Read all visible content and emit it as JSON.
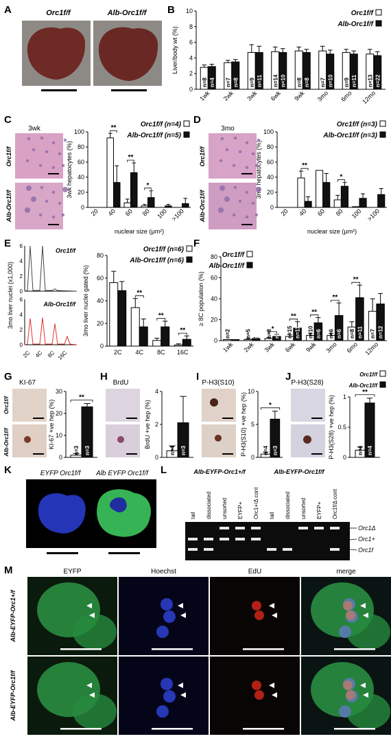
{
  "panel_letters": [
    "A",
    "B",
    "C",
    "D",
    "E",
    "F",
    "G",
    "H",
    "I",
    "J",
    "K",
    "L",
    "M"
  ],
  "colors": {
    "black": "#111111",
    "white": "#ffffff",
    "liver": "#6e2a25",
    "he_pink": "#d9a1c4",
    "flow_red": "#e0322c",
    "eyfp": "#2fae4a",
    "hoechst": "#2a3ec8",
    "edu": "#c42318",
    "gel_bg": "#0c0c0c",
    "gel_band": "#e8e8e8"
  },
  "panelA": {
    "labels": [
      "Orc1f/f",
      "Alb-Orc1f/f"
    ]
  },
  "panelK": {
    "labels": [
      "EYFP Orc1f/f",
      "Alb EYFP Orc1f/f"
    ]
  },
  "panelM": {
    "columns": [
      "EYFP",
      "Hoechst",
      "EdU",
      "merge"
    ],
    "rows": [
      "Alb-EYFP-Orc1+/f",
      "Alb-EYFP-Orc1f/f"
    ]
  },
  "panelL": {
    "group_labels": [
      "Alb-EYFP-Orc1+/f",
      "Alb-EYFP-Orc1f/f"
    ],
    "lanes": [
      "tail",
      "dissociated",
      "unsorted",
      "EYFP+",
      "Orc1+/Δ cont",
      "tail",
      "dissociated",
      "unsorted",
      "EYFP+",
      "Orc1f/Δ cont"
    ],
    "band_labels": [
      "Orc1Δ",
      "Orc1+",
      "Orc1f"
    ]
  },
  "stain_titles": {
    "C": "3wk",
    "D": "3mo",
    "G": "KI-67",
    "H": "BrdU",
    "I": "P-H3(S10)",
    "J": "P-H3(S28)"
  },
  "chart_data": [
    {
      "panel": "B",
      "type": "bar",
      "ylabel": "Liver/body wt (%)",
      "ylim": [
        0,
        10
      ],
      "yticks": [
        0,
        2,
        4,
        6,
        8,
        10
      ],
      "categories": [
        "1wk",
        "2wk",
        "3wk",
        "6wk",
        "9wk",
        "3mo",
        "6mo",
        "12mo"
      ],
      "series": [
        {
          "name": "Orc1f/f",
          "values": [
            2.8,
            3.4,
            4.7,
            4.8,
            4.9,
            4.9,
            4.7,
            4.5
          ],
          "errors": [
            0.3,
            0.3,
            1.0,
            0.6,
            0.5,
            0.6,
            0.4,
            0.6
          ],
          "n": [
            "n=8",
            "n=7",
            "n=9",
            "n=14",
            "n=8",
            "n=7",
            "n=9",
            "n=13"
          ]
        },
        {
          "name": "Alb-Orc1f/f",
          "values": [
            2.9,
            3.5,
            4.7,
            4.7,
            4.7,
            4.5,
            4.5,
            4.3
          ],
          "errors": [
            0.3,
            0.3,
            0.8,
            0.5,
            0.4,
            0.5,
            0.4,
            0.5
          ],
          "n": [
            "n=4",
            "n=8",
            "n=11",
            "n=10",
            "n=8",
            "n=10",
            "n=11",
            "n=22"
          ]
        }
      ]
    },
    {
      "panel": "C",
      "type": "bar",
      "ylabel": "3wk hepatocytes (%)",
      "xlabel": "nuclear size (μm²)",
      "ylim": [
        0,
        100
      ],
      "yticks": [
        0,
        20,
        40,
        60,
        80,
        100
      ],
      "categories": [
        "20",
        "40",
        "60",
        "80",
        "100",
        ">100"
      ],
      "series": [
        {
          "name": "Orc1f/f (n=4)",
          "values": [
            0,
            92,
            6,
            2,
            0,
            0
          ],
          "errors": [
            0,
            6,
            5,
            2,
            0,
            0
          ]
        },
        {
          "name": "Alb-Orc1f/f (n=5)",
          "values": [
            0,
            33,
            46,
            13,
            2,
            5
          ],
          "errors": [
            0,
            22,
            13,
            9,
            2,
            7
          ]
        }
      ],
      "sig": [
        {
          "cat": 1,
          "text": "**"
        },
        {
          "cat": 2,
          "text": "**"
        },
        {
          "cat": 3,
          "text": "*"
        }
      ]
    },
    {
      "panel": "D",
      "type": "bar",
      "ylabel": "3mo hepatocytes (%)",
      "xlabel": "nuclear size (μm²)",
      "ylim": [
        0,
        100
      ],
      "yticks": [
        0,
        20,
        40,
        60,
        80,
        100
      ],
      "categories": [
        "20",
        "40",
        "60",
        "80",
        "100",
        ">100"
      ],
      "series": [
        {
          "name": "Orc1f/f (n=3)",
          "values": [
            0,
            39,
            49,
            10,
            1,
            0
          ],
          "errors": [
            0,
            9,
            0,
            6,
            0,
            0
          ]
        },
        {
          "name": "Alb-Orc1f/f (n=3)",
          "values": [
            0,
            8,
            33,
            28,
            12,
            17
          ],
          "errors": [
            0,
            6,
            12,
            5,
            6,
            8
          ]
        }
      ],
      "sig": [
        {
          "cat": 1,
          "text": "**"
        },
        {
          "cat": 3,
          "text": "*"
        }
      ]
    },
    {
      "panel": "E-flow",
      "type": "line",
      "ylabel": "3mo liver nuclei (x1,000)",
      "ylim": [
        0,
        6
      ],
      "yticks": [
        0,
        2,
        4,
        6
      ],
      "xticks": [
        "2C",
        "4C",
        "8C",
        "16C"
      ],
      "traces": [
        {
          "label": "Orc1f/f",
          "peaks": [
            [
              1,
              6.0
            ],
            [
              2,
              6.0
            ],
            [
              3,
              0.3
            ]
          ]
        },
        {
          "label": "Alb-Orc1f/f",
          "peaks": [
            [
              1,
              3.5
            ],
            [
              2,
              3.6
            ],
            [
              3,
              2.8
            ],
            [
              4,
              1.1
            ]
          ]
        }
      ]
    },
    {
      "panel": "E",
      "type": "bar",
      "ylabel": "3mo liver nuclei gated (%)",
      "ylim": [
        0,
        80
      ],
      "yticks": [
        0,
        20,
        40,
        60,
        80
      ],
      "categories": [
        "2C",
        "4C",
        "8C",
        "16C"
      ],
      "series": [
        {
          "name": "Orc1f/f (n=6)",
          "values": [
            56,
            34,
            5,
            1
          ],
          "errors": [
            10,
            8,
            2,
            1
          ]
        },
        {
          "name": "Alb-Orc1f/f (n=6)",
          "values": [
            49,
            17,
            17,
            6
          ],
          "errors": [
            8,
            7,
            5,
            3
          ]
        }
      ],
      "sig": [
        {
          "cat": 1,
          "text": "**"
        },
        {
          "cat": 2,
          "text": "**"
        },
        {
          "cat": 3,
          "text": "**"
        }
      ]
    },
    {
      "panel": "F",
      "type": "bar",
      "ylabel": "≥ 8C population (%)",
      "ylim": [
        0,
        80
      ],
      "yticks": [
        0,
        20,
        40,
        60,
        80
      ],
      "categories": [
        "1wk",
        "2wk",
        "3wk",
        "6wk",
        "9wk",
        "3mo",
        "6mo",
        "12mo"
      ],
      "series": [
        {
          "name": "Orc1f/f",
          "values": [
            1,
            1,
            2,
            4,
            5,
            5,
            13,
            28
          ],
          "errors": [
            0,
            1,
            1,
            2,
            2,
            2,
            5,
            12
          ],
          "n": [
            "n=2",
            "n=5",
            "n=8",
            "n=15",
            "n=10",
            "n=6",
            "n=8",
            "n=7"
          ]
        },
        {
          "name": "Alb-Orc1f/f",
          "values": [
            1,
            2,
            4,
            12,
            17,
            24,
            41,
            35
          ],
          "errors": [
            0,
            1,
            2,
            6,
            5,
            12,
            12,
            10
          ],
          "n": [
            "n=2",
            "n=5",
            "n=8",
            "n=11",
            "n=6",
            "n=6",
            "n=11",
            "n=12"
          ]
        }
      ],
      "sig": [
        {
          "cat": 2,
          "text": "*"
        },
        {
          "cat": 3,
          "text": "**"
        },
        {
          "cat": 4,
          "text": "**"
        },
        {
          "cat": 5,
          "text": "**"
        },
        {
          "cat": 6,
          "text": "**"
        }
      ]
    },
    {
      "panel": "G",
      "type": "bar",
      "ylabel": "KI-67 +ve hep (%)",
      "ylim": [
        0,
        30
      ],
      "yticks": [
        0,
        10,
        20,
        30
      ],
      "series": [
        {
          "name": "Orc1f/f",
          "values": [
            1
          ],
          "errors": [
            0.8
          ],
          "n": "n=3"
        },
        {
          "name": "Alb-Orc1f/f",
          "values": [
            23
          ],
          "errors": [
            1.5
          ],
          "n": "n=3"
        }
      ],
      "sig": "**"
    },
    {
      "panel": "H",
      "type": "bar",
      "ylabel": "BrdU +ve hep (%)",
      "ylim": [
        0,
        4
      ],
      "yticks": [
        0,
        2,
        4
      ],
      "series": [
        {
          "name": "Orc1f/f",
          "values": [
            0.4
          ],
          "errors": [
            0.3
          ],
          "n": "n=4"
        },
        {
          "name": "Alb-Orc1f/f",
          "values": [
            2.1
          ],
          "errors": [
            1.6
          ],
          "n": "n=3"
        }
      ],
      "sig": ""
    },
    {
      "panel": "I",
      "type": "bar",
      "ylabel": "P-H3(S10) +ve hep (%)",
      "ylim": [
        0,
        10
      ],
      "yticks": [
        0,
        5,
        10
      ],
      "series": [
        {
          "name": "Orc1f/f",
          "values": [
            0.5
          ],
          "errors": [
            0.3
          ],
          "n": "n=4"
        },
        {
          "name": "Alb-Orc1f/f",
          "values": [
            5.8
          ],
          "errors": [
            1.2
          ],
          "n": "n=3"
        }
      ],
      "sig": "*"
    },
    {
      "panel": "J",
      "type": "bar",
      "ylabel": "P-H3(S28) +ve hep (%)",
      "ylim": [
        0,
        1.0
      ],
      "yticks": [
        0,
        0.5,
        1.0
      ],
      "series": [
        {
          "name": "Orc1f/f",
          "values": [
            0.12
          ],
          "errors": [
            0.05
          ],
          "n": "n=4"
        },
        {
          "name": "Alb-Orc1f/f",
          "values": [
            0.9
          ],
          "errors": [
            0.08
          ],
          "n": "n=4"
        }
      ],
      "sig": "**"
    }
  ]
}
